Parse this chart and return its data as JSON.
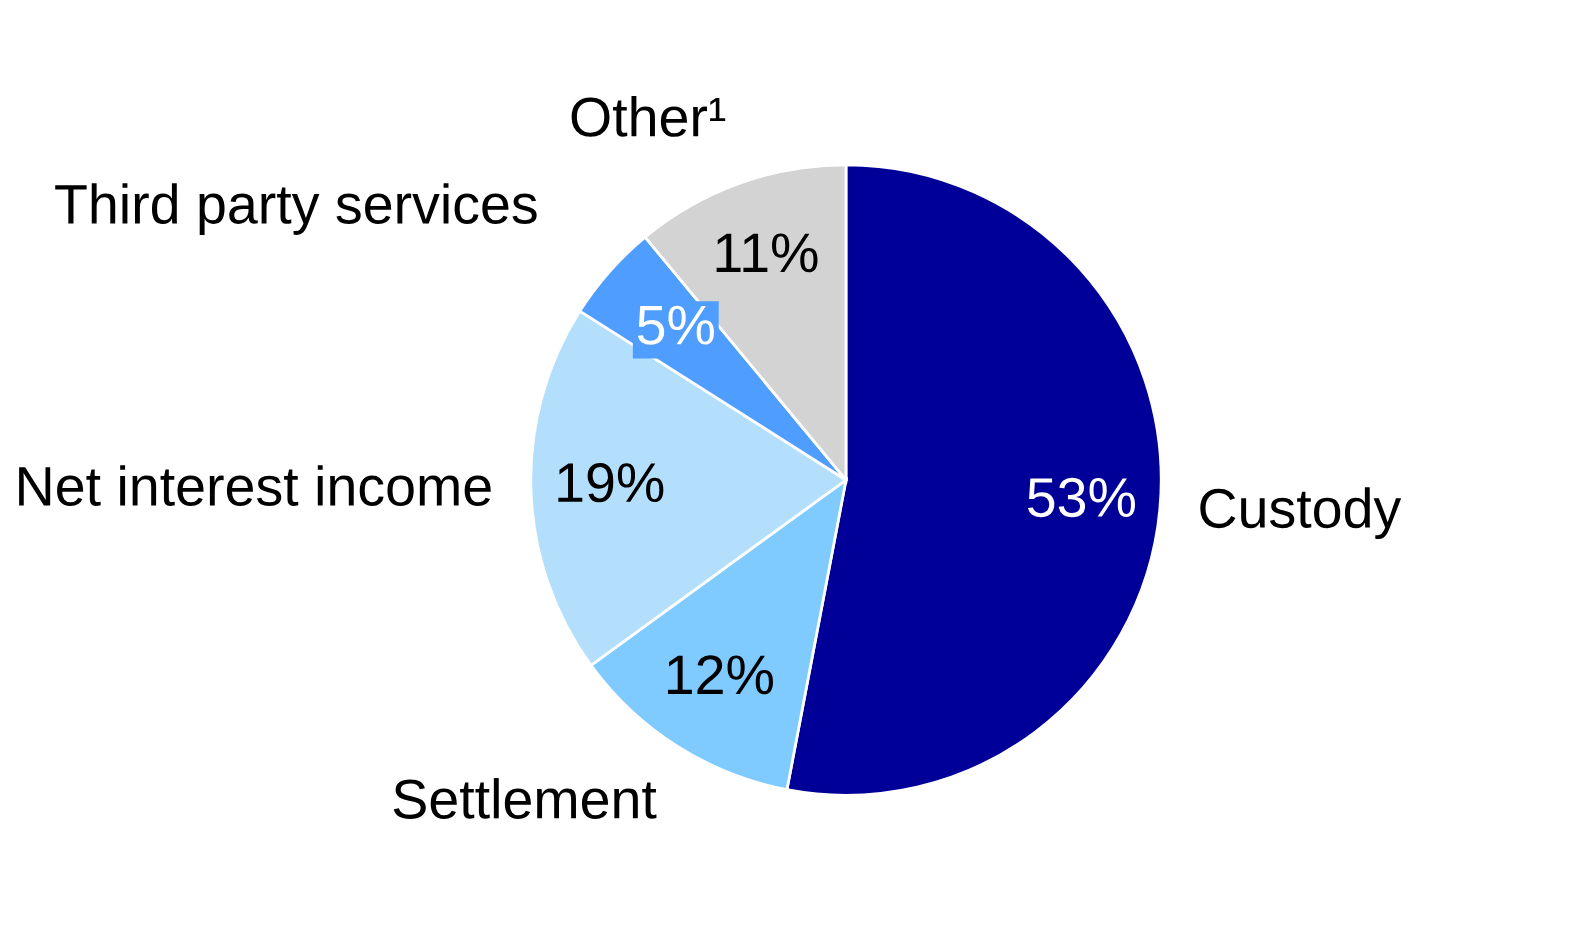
{
  "chart_data": {
    "type": "pie",
    "categories": [
      "Custody",
      "Settlement",
      "Net interest income",
      "Third party services",
      "Other¹"
    ],
    "values": [
      53,
      12,
      19,
      5,
      11
    ],
    "value_labels": [
      "53%",
      "12%",
      "19%",
      "5%",
      "11%"
    ],
    "colors": [
      "#000099",
      "#7fcbff",
      "#b3dffd",
      "#4f9dff",
      "#d3d3d3"
    ]
  }
}
